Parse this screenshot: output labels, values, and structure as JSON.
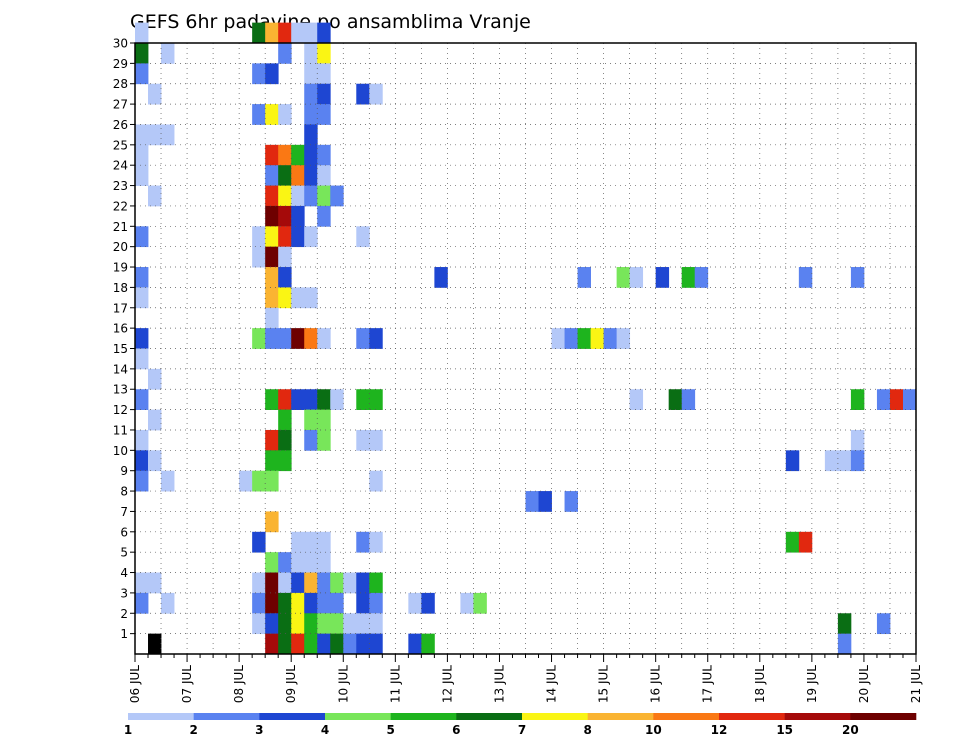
{
  "chart_data": {
    "type": "heatmap",
    "title": "GEFS 6hr padavine po ansamblima Vranje",
    "xlabel": "",
    "ylabel": "",
    "x_axis": {
      "unit": "6-hour steps from 06 JUL 00z",
      "range": [
        0,
        60
      ],
      "tick_labels": [
        "06 JUL",
        "07 JUL",
        "08 JUL",
        "09 JUL",
        "10 JUL",
        "11 JUL",
        "12 JUL",
        "13 JUL",
        "14 JUL",
        "15 JUL",
        "16 JUL",
        "17 JUL",
        "18 JUL",
        "19 JUL",
        "20 JUL",
        "21 JUL"
      ]
    },
    "y_axis": {
      "range": [
        0,
        30
      ],
      "tick_labels": [
        "1",
        "2",
        "3",
        "4",
        "5",
        "6",
        "7",
        "8",
        "9",
        "10",
        "11",
        "12",
        "13",
        "14",
        "15",
        "16",
        "17",
        "18",
        "19",
        "20",
        "21",
        "22",
        "23",
        "24",
        "25",
        "26",
        "27",
        "28",
        "29",
        "30"
      ]
    },
    "grid": true,
    "legend": {
      "placement": "bottom",
      "labels": [
        "1",
        "2",
        "3",
        "4",
        "5",
        "6",
        "7",
        "8",
        "10",
        "12",
        "15",
        "20"
      ],
      "colors": [
        "#b4c8f8",
        "#5a82f0",
        "#1e46d2",
        "#78e65a",
        "#1eb41e",
        "#0a6e14",
        "#faf514",
        "#fab432",
        "#fa7814",
        "#e1280f",
        "#a50a0a",
        "#6e0000"
      ]
    },
    "cells": [
      [
        0,
        30,
        0
      ],
      [
        1,
        0,
        30
      ],
      [
        9,
        30,
        5
      ],
      [
        10,
        30,
        7
      ],
      [
        11,
        30,
        9
      ],
      [
        12,
        30,
        0
      ],
      [
        13,
        30,
        0
      ],
      [
        14,
        30,
        2
      ],
      [
        0,
        29,
        5
      ],
      [
        2,
        29,
        0
      ],
      [
        11,
        29,
        1
      ],
      [
        13,
        29,
        0
      ],
      [
        14,
        29,
        6
      ],
      [
        0,
        28,
        1
      ],
      [
        9,
        28,
        1
      ],
      [
        10,
        28,
        2
      ],
      [
        13,
        28,
        0
      ],
      [
        14,
        28,
        0
      ],
      [
        1,
        27,
        0
      ],
      [
        13,
        27,
        1
      ],
      [
        14,
        27,
        2
      ],
      [
        17,
        27,
        2
      ],
      [
        18,
        27,
        0
      ],
      [
        9,
        26,
        1
      ],
      [
        10,
        26,
        6
      ],
      [
        11,
        26,
        0
      ],
      [
        13,
        26,
        1
      ],
      [
        14,
        26,
        1
      ],
      [
        0,
        25,
        0
      ],
      [
        1,
        25,
        0
      ],
      [
        2,
        25,
        0
      ],
      [
        13,
        25,
        2
      ],
      [
        0,
        24,
        0
      ],
      [
        10,
        24,
        9
      ],
      [
        11,
        24,
        8
      ],
      [
        12,
        24,
        4
      ],
      [
        13,
        24,
        2
      ],
      [
        14,
        24,
        1
      ],
      [
        0,
        23,
        0
      ],
      [
        10,
        23,
        1
      ],
      [
        11,
        23,
        5
      ],
      [
        12,
        23,
        8
      ],
      [
        13,
        23,
        2
      ],
      [
        14,
        23,
        0
      ],
      [
        1,
        22,
        0
      ],
      [
        10,
        22,
        9
      ],
      [
        11,
        22,
        6
      ],
      [
        12,
        22,
        0
      ],
      [
        13,
        22,
        1
      ],
      [
        14,
        22,
        3
      ],
      [
        15,
        22,
        1
      ],
      [
        10,
        21,
        11
      ],
      [
        11,
        21,
        10
      ],
      [
        12,
        21,
        2
      ],
      [
        14,
        21,
        1
      ],
      [
        0,
        20,
        1
      ],
      [
        9,
        20,
        0
      ],
      [
        10,
        20,
        6
      ],
      [
        11,
        20,
        9
      ],
      [
        12,
        20,
        2
      ],
      [
        13,
        20,
        0
      ],
      [
        17,
        20,
        0
      ],
      [
        9,
        19,
        0
      ],
      [
        10,
        19,
        11
      ],
      [
        11,
        19,
        0
      ],
      [
        0,
        18,
        1
      ],
      [
        10,
        18,
        7
      ],
      [
        11,
        18,
        2
      ],
      [
        23,
        18,
        2
      ],
      [
        34,
        18,
        1
      ],
      [
        37,
        18,
        3
      ],
      [
        38,
        18,
        0
      ],
      [
        40,
        18,
        2
      ],
      [
        42,
        18,
        4
      ],
      [
        43,
        18,
        1
      ],
      [
        51,
        18,
        1
      ],
      [
        55,
        18,
        1
      ],
      [
        0,
        17,
        0
      ],
      [
        10,
        17,
        7
      ],
      [
        11,
        17,
        6
      ],
      [
        12,
        17,
        0
      ],
      [
        13,
        17,
        0
      ],
      [
        10,
        16,
        0
      ],
      [
        0,
        15,
        2
      ],
      [
        9,
        15,
        3
      ],
      [
        10,
        15,
        1
      ],
      [
        11,
        15,
        1
      ],
      [
        12,
        15,
        11
      ],
      [
        13,
        15,
        8
      ],
      [
        14,
        15,
        0
      ],
      [
        17,
        15,
        1
      ],
      [
        18,
        15,
        2
      ],
      [
        32,
        15,
        0
      ],
      [
        33,
        15,
        1
      ],
      [
        34,
        15,
        4
      ],
      [
        35,
        15,
        6
      ],
      [
        36,
        15,
        1
      ],
      [
        37,
        15,
        0
      ],
      [
        0,
        14,
        0
      ],
      [
        1,
        13,
        0
      ],
      [
        0,
        12,
        1
      ],
      [
        10,
        12,
        4
      ],
      [
        11,
        12,
        9
      ],
      [
        12,
        12,
        2
      ],
      [
        13,
        12,
        2
      ],
      [
        14,
        12,
        5
      ],
      [
        15,
        12,
        0
      ],
      [
        17,
        12,
        4
      ],
      [
        18,
        12,
        4
      ],
      [
        38,
        12,
        0
      ],
      [
        41,
        12,
        5
      ],
      [
        42,
        12,
        1
      ],
      [
        55,
        12,
        4
      ],
      [
        57,
        12,
        1
      ],
      [
        58,
        12,
        9
      ],
      [
        59,
        12,
        1
      ],
      [
        1,
        11,
        0
      ],
      [
        11,
        11,
        4
      ],
      [
        13,
        11,
        3
      ],
      [
        14,
        11,
        3
      ],
      [
        0,
        10,
        0
      ],
      [
        10,
        10,
        9
      ],
      [
        11,
        10,
        5
      ],
      [
        13,
        10,
        1
      ],
      [
        14,
        10,
        3
      ],
      [
        17,
        10,
        0
      ],
      [
        18,
        10,
        0
      ],
      [
        55,
        10,
        0
      ],
      [
        0,
        9,
        2
      ],
      [
        1,
        9,
        0
      ],
      [
        10,
        9,
        4
      ],
      [
        11,
        9,
        4
      ],
      [
        50,
        9,
        2
      ],
      [
        53,
        9,
        0
      ],
      [
        54,
        9,
        0
      ],
      [
        55,
        9,
        1
      ],
      [
        0,
        8,
        1
      ],
      [
        2,
        8,
        0
      ],
      [
        8,
        8,
        0
      ],
      [
        9,
        8,
        3
      ],
      [
        10,
        8,
        3
      ],
      [
        18,
        8,
        0
      ],
      [
        30,
        7,
        1
      ],
      [
        31,
        7,
        2
      ],
      [
        33,
        7,
        1
      ],
      [
        10,
        6,
        7
      ],
      [
        9,
        5,
        2
      ],
      [
        12,
        5,
        0
      ],
      [
        13,
        5,
        0
      ],
      [
        14,
        5,
        0
      ],
      [
        17,
        5,
        1
      ],
      [
        18,
        5,
        0
      ],
      [
        50,
        5,
        4
      ],
      [
        51,
        5,
        9
      ],
      [
        10,
        4,
        3
      ],
      [
        11,
        4,
        1
      ],
      [
        12,
        4,
        0
      ],
      [
        13,
        4,
        0
      ],
      [
        14,
        4,
        0
      ],
      [
        0,
        3,
        0
      ],
      [
        1,
        3,
        0
      ],
      [
        9,
        3,
        0
      ],
      [
        10,
        3,
        11
      ],
      [
        11,
        3,
        0
      ],
      [
        12,
        3,
        2
      ],
      [
        13,
        3,
        7
      ],
      [
        14,
        3,
        1
      ],
      [
        15,
        3,
        3
      ],
      [
        16,
        3,
        0
      ],
      [
        17,
        3,
        2
      ],
      [
        18,
        3,
        4
      ],
      [
        0,
        2,
        1
      ],
      [
        2,
        2,
        0
      ],
      [
        9,
        2,
        1
      ],
      [
        10,
        2,
        11
      ],
      [
        11,
        2,
        5
      ],
      [
        12,
        2,
        6
      ],
      [
        13,
        2,
        2
      ],
      [
        14,
        2,
        1
      ],
      [
        15,
        2,
        1
      ],
      [
        17,
        2,
        2
      ],
      [
        18,
        2,
        1
      ],
      [
        21,
        2,
        0
      ],
      [
        22,
        2,
        2
      ],
      [
        25,
        2,
        0
      ],
      [
        26,
        2,
        3
      ],
      [
        9,
        1,
        0
      ],
      [
        10,
        1,
        2
      ],
      [
        11,
        1,
        5
      ],
      [
        12,
        1,
        6
      ],
      [
        13,
        1,
        4
      ],
      [
        14,
        1,
        3
      ],
      [
        15,
        1,
        3
      ],
      [
        16,
        1,
        0
      ],
      [
        17,
        1,
        0
      ],
      [
        18,
        1,
        0
      ],
      [
        54,
        1,
        5
      ],
      [
        57,
        1,
        1
      ],
      [
        10,
        0,
        10
      ],
      [
        11,
        0,
        5
      ],
      [
        12,
        0,
        9
      ],
      [
        13,
        0,
        4
      ],
      [
        14,
        0,
        2
      ],
      [
        15,
        0,
        5
      ],
      [
        16,
        0,
        1
      ],
      [
        17,
        0,
        2
      ],
      [
        18,
        0,
        2
      ],
      [
        21,
        0,
        2
      ],
      [
        22,
        0,
        4
      ],
      [
        54,
        0,
        1
      ]
    ]
  }
}
